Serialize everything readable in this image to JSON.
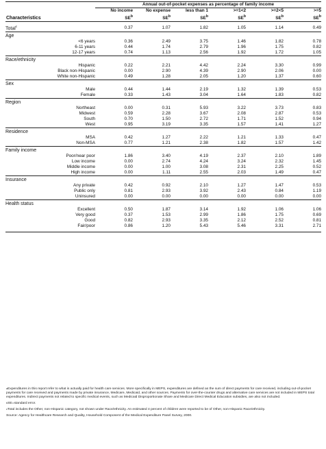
{
  "header": {
    "spanning_title": "Annual out-of-pocket expenses as percentage of family income",
    "characteristics_label": "Characteristics",
    "columns": [
      {
        "top": "No income",
        "bottom": "SE",
        "sup": "b"
      },
      {
        "top": "No expense",
        "bottom": "SE",
        "sup": "b"
      },
      {
        "top": "less than 1",
        "bottom": "SE",
        "sup": "b"
      },
      {
        "top": ">=1<2",
        "bottom": "SE",
        "sup": "b"
      },
      {
        "top": ">=2<5",
        "bottom": "SE",
        "sup": "b"
      },
      {
        "top": ">=5",
        "bottom": "SE",
        "sup": "b"
      }
    ]
  },
  "total": {
    "label": "Total",
    "sup": "c",
    "values": [
      "0.37",
      "1.07",
      "1.82",
      "1.05",
      "1.14",
      "0.49"
    ]
  },
  "sections": [
    {
      "title": "Age",
      "rows": [
        {
          "label": "<6 years",
          "values": [
            "0.36",
            "2.49",
            "3.75",
            "1.46",
            "1.82",
            "0.78"
          ]
        },
        {
          "label": "6-11 years",
          "values": [
            "0.44",
            "1.74",
            "2.79",
            "1.96",
            "1.75",
            "0.82"
          ]
        },
        {
          "label": "12-17 years",
          "values": [
            "0.74",
            "1.13",
            "2.56",
            "1.92",
            "1.72",
            "1.05"
          ]
        }
      ]
    },
    {
      "title": "Race/ethnicity",
      "rows": [
        {
          "label": "Hispanic",
          "values": [
            "0.22",
            "2.21",
            "4.42",
            "2.24",
            "3.30",
            "0.99"
          ]
        },
        {
          "label": "Black non-Hispanic",
          "values": [
            "0.00",
            "2.90",
            "4.39",
            "2.90",
            "2.06",
            "0.00"
          ]
        },
        {
          "label": "White non-Hispanic",
          "values": [
            "0.49",
            "1.28",
            "2.05",
            "1.20",
            "1.37",
            "0.60"
          ]
        }
      ]
    },
    {
      "title": "Sex",
      "rows": [
        {
          "label": "Male",
          "values": [
            "0.44",
            "1.44",
            "2.19",
            "1.32",
            "1.39",
            "0.53"
          ]
        },
        {
          "label": "Female",
          "values": [
            "0.33",
            "1.43",
            "3.04",
            "1.64",
            "1.83",
            "0.82"
          ]
        }
      ]
    },
    {
      "title": "Region",
      "rows": [
        {
          "label": "Northeast",
          "values": [
            "0.00",
            "0.31",
            "5.93",
            "3.22",
            "3.73",
            "0.83"
          ]
        },
        {
          "label": "Midwest",
          "values": [
            "0.59",
            "2.28",
            "3.67",
            "2.08",
            "2.87",
            "0.53"
          ]
        },
        {
          "label": "South",
          "values": [
            "0.70",
            "1.50",
            "2.72",
            "1.71",
            "1.52",
            "0.94"
          ]
        },
        {
          "label": "West",
          "values": [
            "0.95",
            "3.19",
            "3.35",
            "1.57",
            "1.41",
            "1.27"
          ]
        }
      ]
    },
    {
      "title": "Residence",
      "rows": [
        {
          "label": "MSA",
          "values": [
            "0.42",
            "1.27",
            "2.22",
            "1.21",
            "1.33",
            "0.47"
          ]
        },
        {
          "label": "Non-MSA",
          "values": [
            "0.77",
            "1.21",
            "2.38",
            "1.82",
            "1.57",
            "1.42"
          ]
        }
      ]
    },
    {
      "title": "Family income",
      "rows": [
        {
          "label": "Poor/near poor",
          "values": [
            "1.86",
            "3.40",
            "4.19",
            "2.37",
            "2.10",
            "1.89"
          ]
        },
        {
          "label": "Low income",
          "values": [
            "0.00",
            "2.74",
            "4.24",
            "3.24",
            "2.32",
            "1.45"
          ]
        },
        {
          "label": "Middle income",
          "values": [
            "0.00",
            "1.00",
            "3.08",
            "2.31",
            "2.25",
            "0.52"
          ]
        },
        {
          "label": "High income",
          "values": [
            "0.00",
            "1.11",
            "2.55",
            "2.03",
            "1.49",
            "0.47"
          ]
        }
      ]
    },
    {
      "title": "Insurance",
      "rows": [
        {
          "label": "Any private",
          "values": [
            "0.42",
            "0.92",
            "2.10",
            "1.27",
            "1.47",
            "0.53"
          ]
        },
        {
          "label": "Public only",
          "values": [
            "0.81",
            "2.93",
            "3.92",
            "2.43",
            "0.84",
            "1.19"
          ]
        },
        {
          "label": "Uninsured",
          "values": [
            "0.00",
            "0.00",
            "0.00",
            "0.00",
            "0.00",
            "0.00"
          ]
        }
      ]
    },
    {
      "title": "Health status",
      "rows": [
        {
          "label": "Excellent",
          "values": [
            "0.50",
            "1.87",
            "3.14",
            "1.92",
            "1.06",
            "1.06"
          ]
        },
        {
          "label": "Very good",
          "values": [
            "0.37",
            "1.53",
            "2.99",
            "1.86",
            "1.75",
            "0.69"
          ]
        },
        {
          "label": "Good",
          "values": [
            "0.82",
            "2.93",
            "3.35",
            "2.12",
            "2.52",
            "0.81"
          ]
        },
        {
          "label": "Fair/poor",
          "values": [
            "0.86",
            "1.20",
            "5.43",
            "5.46",
            "3.31",
            "2.71"
          ]
        }
      ]
    }
  ],
  "footnotes": {
    "a": {
      "sup": "a",
      "text": "Expenditures in this report refer to what is actually paid for health care services. More specifically in MEPS, expenditures are defined as the sum of direct payments for care received, including out-of-pocket payments for care received and payments made by private insurance, Medicare, Medicaid, and other sources. Payments for over-the-counter drugs and alternative care services are not included in MEPS total expenditures. Indirect payments not related to specific medical events, such as Medicaid Disproportionate Share and Medicare Direct Medical Education subsidies, are also not included."
    },
    "b": {
      "sup": "b",
      "text": "SE=standard error."
    },
    "c": {
      "sup": "c",
      "text": "Total includes the Other, non-Hispanic category, not shown under Race/ethnicity.  An estimated 4 percent of children were reported to be of Other, non-Hispanic Race/ethnicity."
    },
    "source": "Source:  Agency for Healthcare Research and Quality, Household Component of the Medical Expenditure Panel Survey, 2000."
  }
}
